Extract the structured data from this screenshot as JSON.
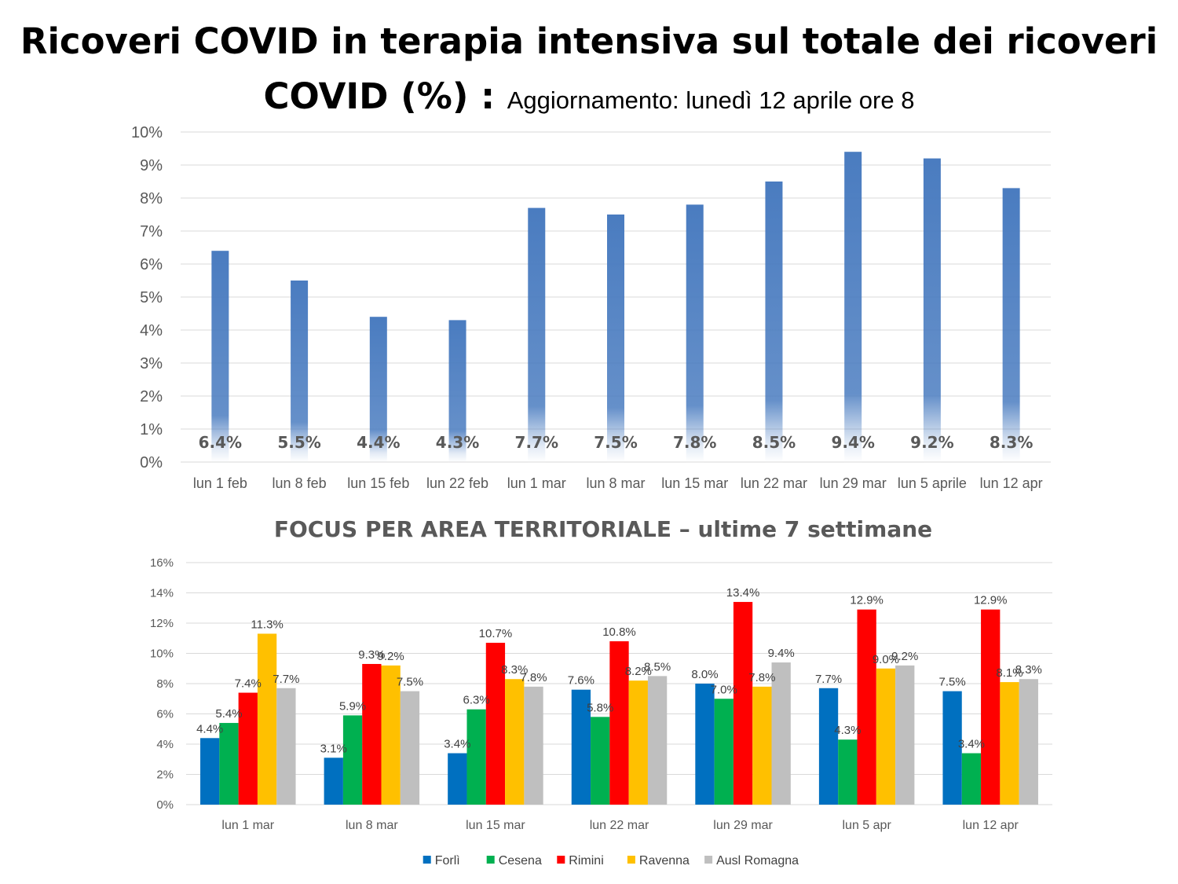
{
  "header": {
    "title_line1": "Ricoveri COVID in terapia intensiva sul totale dei ricoveri",
    "title_line2": "COVID (%) : ",
    "update_text": "Aggiornamento: lunedì 12 aprile ore 8"
  },
  "chart_data": [
    {
      "type": "bar",
      "title": "",
      "categories": [
        "lun 1 feb",
        "lun 8 feb",
        "lun 15 feb",
        "lun 22 feb",
        "lun 1 mar",
        "lun 8 mar",
        "lun 15 mar",
        "lun 22 mar",
        "lun 29 mar",
        "lun 5 aprile",
        "lun 12 apr"
      ],
      "values": [
        6.4,
        5.5,
        4.4,
        4.3,
        7.7,
        7.5,
        7.8,
        8.5,
        9.4,
        9.2,
        8.3
      ],
      "data_labels": [
        "6.4%",
        "5.5%",
        "4.4%",
        "4.3%",
        "7.7%",
        "7.5%",
        "7.8%",
        "8.5%",
        "9.4%",
        "9.2%",
        "8.3%"
      ],
      "ylim": [
        0,
        10
      ],
      "yticks": [
        "0%",
        "1%",
        "2%",
        "3%",
        "4%",
        "5%",
        "6%",
        "7%",
        "8%",
        "9%",
        "10%"
      ],
      "xlabel": "",
      "ylabel": "",
      "grid": true,
      "color": "#4a7cc0"
    },
    {
      "type": "bar",
      "title": "FOCUS PER AREA TERRITORIALE – ultime 7 settimane",
      "categories": [
        "lun 1 mar",
        "lun 8 mar",
        "lun 15 mar",
        "lun 22 mar",
        "lun 29 mar",
        "lun 5 apr",
        "lun 12 apr"
      ],
      "ylim": [
        0,
        16
      ],
      "yticks": [
        "0%",
        "2%",
        "4%",
        "6%",
        "8%",
        "10%",
        "12%",
        "14%",
        "16%"
      ],
      "xlabel": "",
      "ylabel": "",
      "grid": true,
      "legend_position": "bottom",
      "series": [
        {
          "name": "Forlì",
          "color": "#0070c0",
          "values": [
            4.4,
            3.1,
            3.4,
            7.6,
            8.0,
            7.7,
            7.5
          ],
          "labels": [
            "4.4%",
            "3.1%",
            "3.4%",
            "7.6%",
            "8.0%",
            "7.7%",
            "7.5%"
          ]
        },
        {
          "name": "Cesena",
          "color": "#00b050",
          "values": [
            5.4,
            5.9,
            6.3,
            5.8,
            7.0,
            4.3,
            3.4
          ],
          "labels": [
            "5.4%",
            "5.9%",
            "6.3%",
            "5.8%",
            "7.0%",
            "4.3%",
            "3.4%"
          ]
        },
        {
          "name": "Rimini",
          "color": "#ff0000",
          "values": [
            7.4,
            9.3,
            10.7,
            10.8,
            13.4,
            12.9,
            12.9
          ],
          "labels": [
            "7.4%",
            "9.3%",
            "10.7%",
            "10.8%",
            "13.4%",
            "12.9%",
            "12.9%"
          ]
        },
        {
          "name": "Ravenna",
          "color": "#ffc000",
          "values": [
            11.3,
            9.2,
            8.3,
            8.2,
            7.8,
            9.0,
            8.1
          ],
          "labels": [
            "11.3%",
            "9.2%",
            "8.3%",
            "8.2%",
            "7.8%",
            "9.0%",
            "8.1%"
          ]
        },
        {
          "name": "Ausl Romagna",
          "color": "#bfbfbf",
          "values": [
            7.7,
            7.5,
            7.8,
            8.5,
            9.4,
            9.2,
            8.3
          ],
          "labels": [
            "7.7%",
            "7.5%",
            "7.8%",
            "8.5%",
            "9.4%",
            "9.2%",
            "8.3%"
          ]
        }
      ]
    }
  ]
}
